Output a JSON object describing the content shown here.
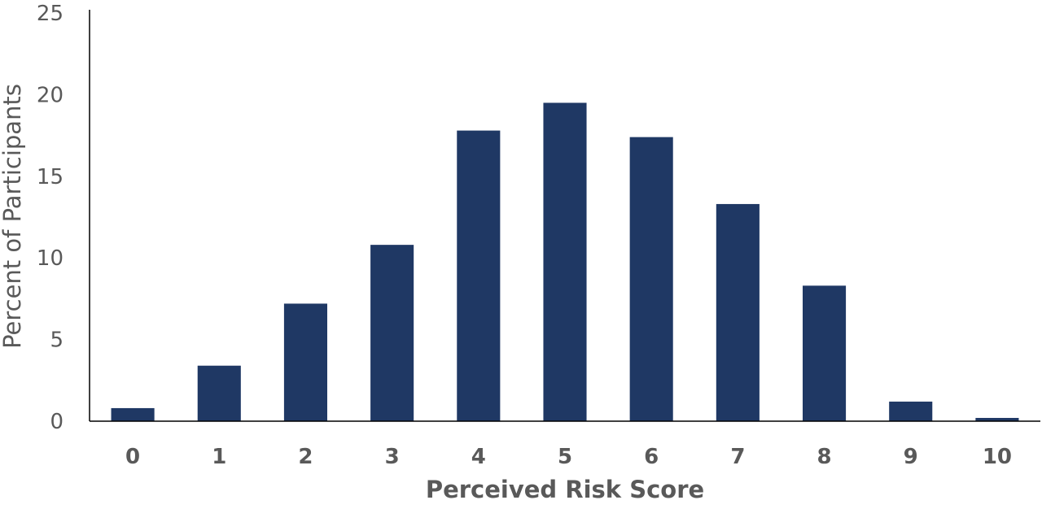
{
  "chart_data": {
    "type": "bar",
    "title": "",
    "xlabel": "Perceived Risk Score",
    "ylabel": "Percent of Participants",
    "categories": [
      "0",
      "1",
      "2",
      "3",
      "4",
      "5",
      "6",
      "7",
      "8",
      "9",
      "10"
    ],
    "values": [
      0.8,
      3.4,
      7.2,
      10.8,
      17.8,
      19.5,
      17.4,
      13.3,
      8.3,
      1.2,
      0.2
    ],
    "ylim": [
      0,
      25
    ],
    "yticks": [
      "0",
      "5",
      "10",
      "15",
      "20",
      "25"
    ],
    "grid": false,
    "legend": "none",
    "bar_color": "#1f3864",
    "axis_color": "#000000",
    "text_color": "#595959"
  }
}
